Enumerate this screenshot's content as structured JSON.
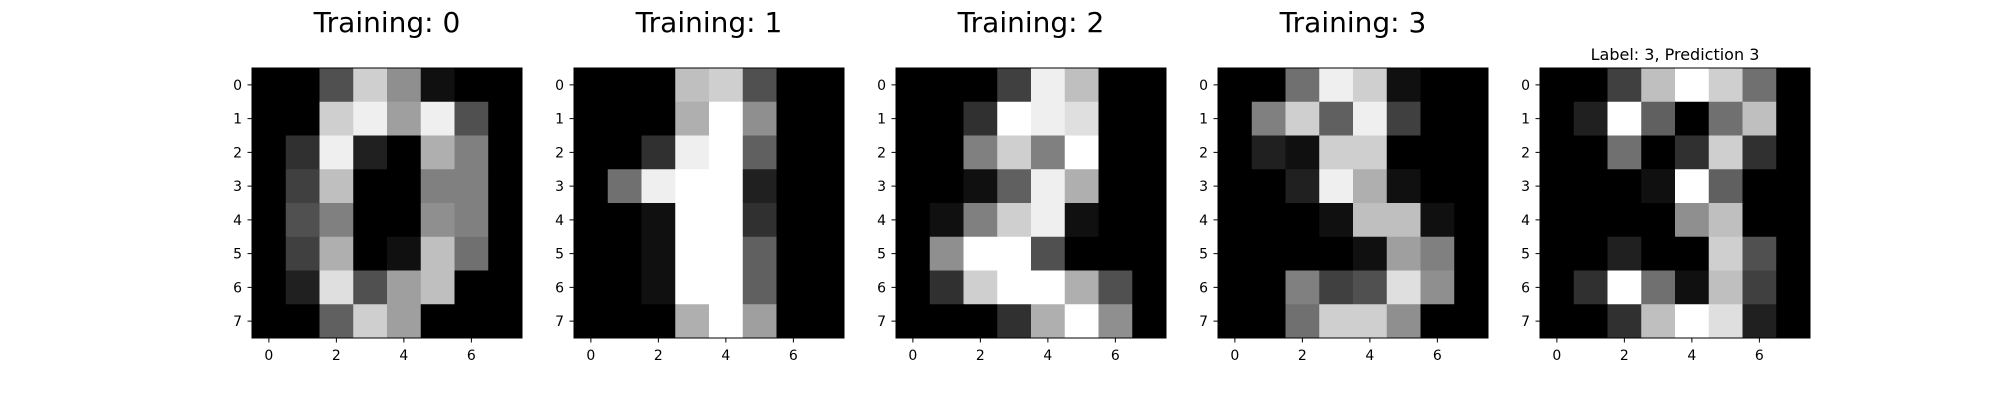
{
  "chart_data": [
    {
      "type": "heatmap",
      "title": "Training: 0",
      "colormap": "gray",
      "value_range": [
        0,
        16
      ],
      "x_ticks": [
        "0",
        "2",
        "4",
        "6"
      ],
      "y_ticks": [
        "0",
        "1",
        "2",
        "3",
        "4",
        "5",
        "6",
        "7"
      ],
      "values": [
        [
          0,
          0,
          5,
          13,
          9,
          1,
          0,
          0
        ],
        [
          0,
          0,
          13,
          15,
          10,
          15,
          5,
          0
        ],
        [
          0,
          3,
          15,
          2,
          0,
          11,
          8,
          0
        ],
        [
          0,
          4,
          12,
          0,
          0,
          8,
          8,
          0
        ],
        [
          0,
          5,
          8,
          0,
          0,
          9,
          8,
          0
        ],
        [
          0,
          4,
          11,
          0,
          1,
          12,
          7,
          0
        ],
        [
          0,
          2,
          14,
          5,
          10,
          12,
          0,
          0
        ],
        [
          0,
          0,
          6,
          13,
          10,
          0,
          0,
          0
        ]
      ]
    },
    {
      "type": "heatmap",
      "title": "Training: 1",
      "colormap": "gray",
      "value_range": [
        0,
        16
      ],
      "x_ticks": [
        "0",
        "2",
        "4",
        "6"
      ],
      "y_ticks": [
        "0",
        "1",
        "2",
        "3",
        "4",
        "5",
        "6",
        "7"
      ],
      "values": [
        [
          0,
          0,
          0,
          12,
          13,
          5,
          0,
          0
        ],
        [
          0,
          0,
          0,
          11,
          16,
          9,
          0,
          0
        ],
        [
          0,
          0,
          3,
          15,
          16,
          6,
          0,
          0
        ],
        [
          0,
          7,
          15,
          16,
          16,
          2,
          0,
          0
        ],
        [
          0,
          0,
          1,
          16,
          16,
          3,
          0,
          0
        ],
        [
          0,
          0,
          1,
          16,
          16,
          6,
          0,
          0
        ],
        [
          0,
          0,
          1,
          16,
          16,
          6,
          0,
          0
        ],
        [
          0,
          0,
          0,
          11,
          16,
          10,
          0,
          0
        ]
      ]
    },
    {
      "type": "heatmap",
      "title": "Training: 2",
      "colormap": "gray",
      "value_range": [
        0,
        16
      ],
      "x_ticks": [
        "0",
        "2",
        "4",
        "6"
      ],
      "y_ticks": [
        "0",
        "1",
        "2",
        "3",
        "4",
        "5",
        "6",
        "7"
      ],
      "values": [
        [
          0,
          0,
          0,
          4,
          15,
          12,
          0,
          0
        ],
        [
          0,
          0,
          3,
          16,
          15,
          14,
          0,
          0
        ],
        [
          0,
          0,
          8,
          13,
          8,
          16,
          0,
          0
        ],
        [
          0,
          0,
          1,
          6,
          15,
          11,
          0,
          0
        ],
        [
          0,
          1,
          8,
          13,
          15,
          1,
          0,
          0
        ],
        [
          0,
          9,
          16,
          16,
          5,
          0,
          0,
          0
        ],
        [
          0,
          3,
          13,
          16,
          16,
          11,
          5,
          0
        ],
        [
          0,
          0,
          0,
          3,
          11,
          16,
          9,
          0
        ]
      ]
    },
    {
      "type": "heatmap",
      "title": "Training: 3",
      "colormap": "gray",
      "value_range": [
        0,
        16
      ],
      "x_ticks": [
        "0",
        "2",
        "4",
        "6"
      ],
      "y_ticks": [
        "0",
        "1",
        "2",
        "3",
        "4",
        "5",
        "6",
        "7"
      ],
      "values": [
        [
          0,
          0,
          7,
          15,
          13,
          1,
          0,
          0
        ],
        [
          0,
          8,
          13,
          6,
          15,
          4,
          0,
          0
        ],
        [
          0,
          2,
          1,
          13,
          13,
          0,
          0,
          0
        ],
        [
          0,
          0,
          2,
          15,
          11,
          1,
          0,
          0
        ],
        [
          0,
          0,
          0,
          1,
          12,
          12,
          1,
          0
        ],
        [
          0,
          0,
          0,
          0,
          1,
          10,
          8,
          0
        ],
        [
          0,
          0,
          8,
          4,
          5,
          14,
          9,
          0
        ],
        [
          0,
          0,
          7,
          13,
          13,
          9,
          0,
          0
        ]
      ]
    },
    {
      "type": "heatmap",
      "title": "Label: 3, Prediction 3",
      "colormap": "gray",
      "value_range": [
        0,
        16
      ],
      "x_ticks": [
        "0",
        "2",
        "4",
        "6"
      ],
      "y_ticks": [
        "0",
        "1",
        "2",
        "3",
        "4",
        "5",
        "6",
        "7"
      ],
      "values": [
        [
          0,
          0,
          4,
          12,
          16,
          13,
          7,
          0
        ],
        [
          0,
          2,
          16,
          6,
          0,
          7,
          12,
          0
        ],
        [
          0,
          0,
          7,
          0,
          3,
          13,
          3,
          0
        ],
        [
          0,
          0,
          0,
          1,
          16,
          6,
          0,
          0
        ],
        [
          0,
          0,
          0,
          0,
          9,
          12,
          0,
          0
        ],
        [
          0,
          0,
          2,
          0,
          0,
          13,
          5,
          0
        ],
        [
          0,
          3,
          16,
          7,
          1,
          12,
          4,
          0
        ],
        [
          0,
          0,
          3,
          12,
          16,
          14,
          2,
          0
        ]
      ]
    }
  ]
}
